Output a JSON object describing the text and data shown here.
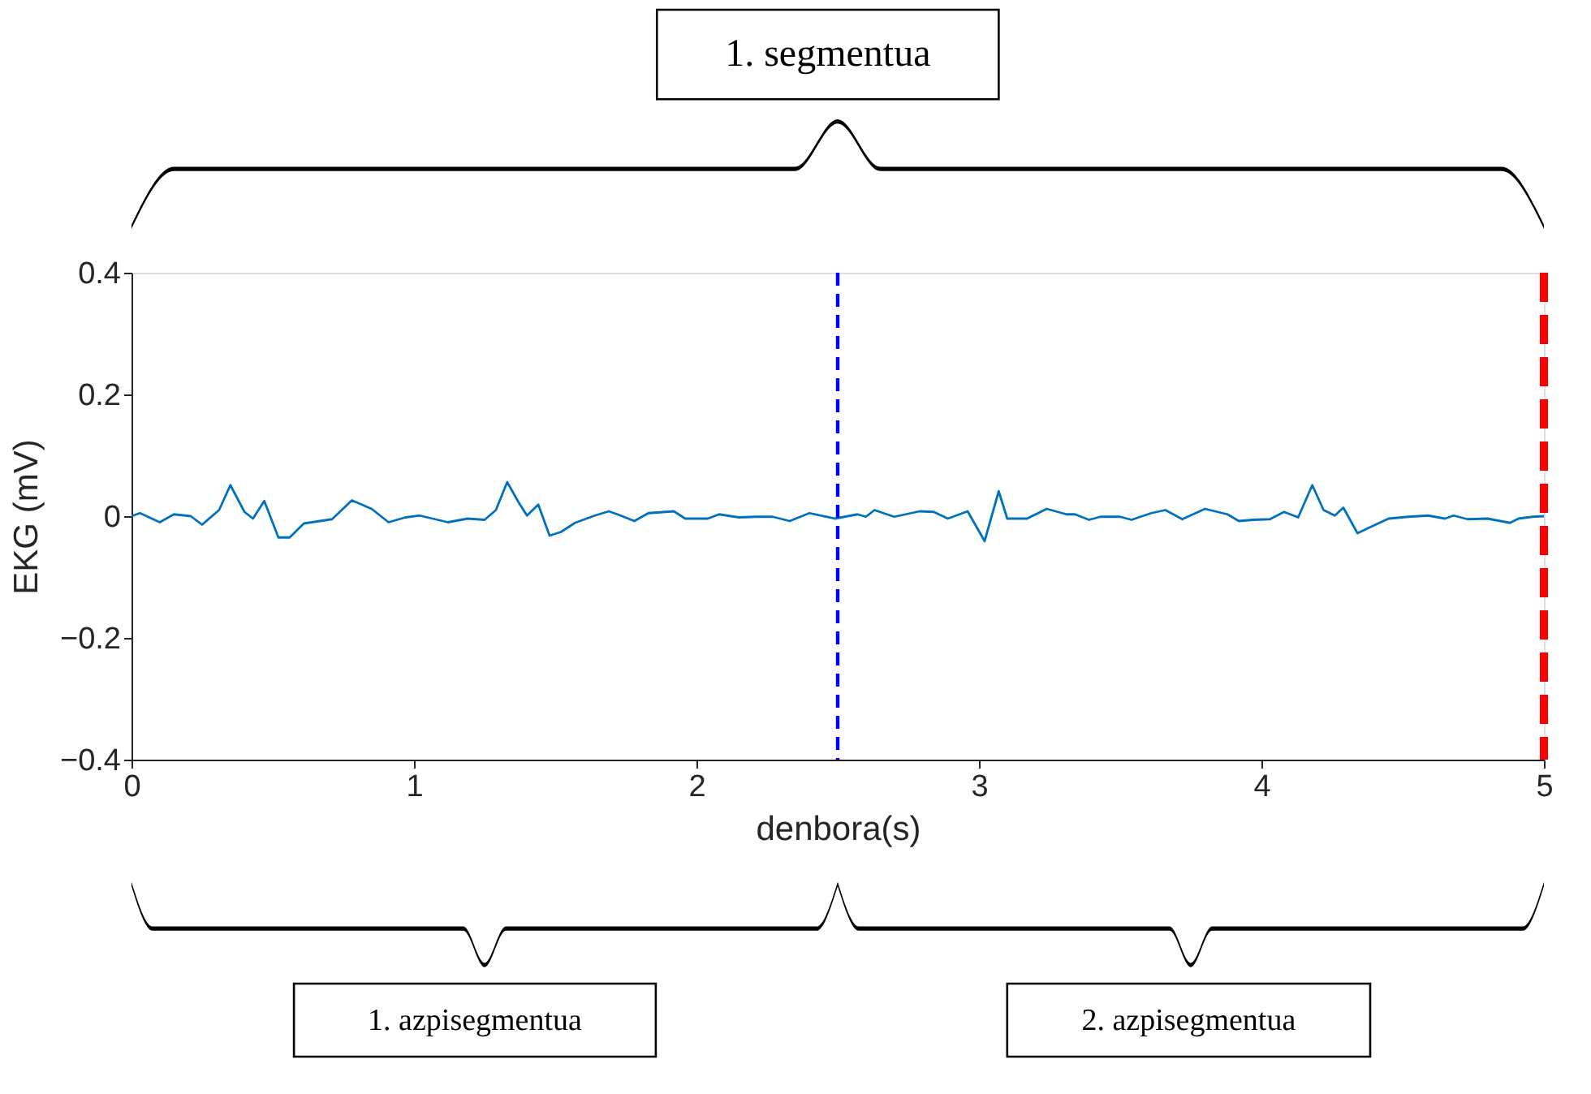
{
  "chart_data": {
    "type": "line",
    "xlabel": "denbora(s)",
    "ylabel": "EKG (mV)",
    "xlim": [
      0,
      5
    ],
    "ylim": [
      -0.4,
      0.4
    ],
    "xticks": [
      0,
      1,
      2,
      3,
      4,
      5
    ],
    "yticks": [
      -0.4,
      -0.2,
      0,
      0.2,
      0.4
    ],
    "grid": false,
    "series": [
      {
        "color": "#0072bd",
        "x": [
          0,
          0.03,
          0.1,
          0.15,
          0.21,
          0.25,
          0.31,
          0.35,
          0.4,
          0.43,
          0.47,
          0.52,
          0.56,
          0.61,
          0.71,
          0.78,
          0.85,
          0.91,
          0.97,
          1.02,
          1.12,
          1.19,
          1.25,
          1.29,
          1.33,
          1.37,
          1.4,
          1.44,
          1.48,
          1.52,
          1.57,
          1.64,
          1.69,
          1.72,
          1.78,
          1.83,
          1.92,
          1.96,
          2.04,
          2.08,
          2.15,
          2.21,
          2.27,
          2.33,
          2.4,
          2.49,
          2.57,
          2.6,
          2.63,
          2.7,
          2.79,
          2.84,
          2.89,
          2.96,
          3.02,
          3.07,
          3.1,
          3.17,
          3.24,
          3.31,
          3.34,
          3.39,
          3.43,
          3.5,
          3.54,
          3.61,
          3.66,
          3.72,
          3.8,
          3.88,
          3.92,
          3.97,
          4.03,
          4.08,
          4.13,
          4.18,
          4.22,
          4.26,
          4.29,
          4.34,
          4.39,
          4.45,
          4.52,
          4.59,
          4.65,
          4.68,
          4.73,
          4.8,
          4.88,
          4.91,
          4.96,
          5.0
        ],
        "values": [
          0,
          0.005,
          -0.01,
          0.003,
          0,
          -0.014,
          0.01,
          0.051,
          0.007,
          -0.004,
          0.025,
          -0.035,
          -0.035,
          -0.012,
          -0.005,
          0.026,
          0.012,
          -0.01,
          -0.002,
          0.001,
          -0.01,
          -0.004,
          -0.006,
          0.01,
          0.056,
          0.023,
          0.001,
          0.019,
          -0.032,
          -0.026,
          -0.011,
          0.001,
          0.008,
          0.003,
          -0.008,
          0.005,
          0.008,
          -0.004,
          -0.004,
          0.003,
          -0.002,
          -0.001,
          -0.001,
          -0.008,
          0.005,
          -0.004,
          0.003,
          -0.001,
          0.01,
          -0.001,
          0.008,
          0.007,
          -0.004,
          0.008,
          -0.041,
          0.041,
          -0.004,
          -0.004,
          0.012,
          0.003,
          0.003,
          -0.006,
          -0.001,
          -0.001,
          -0.006,
          0.005,
          0.01,
          -0.005,
          0.012,
          0.003,
          -0.008,
          -0.006,
          -0.005,
          0.007,
          -0.002,
          0.051,
          0.01,
          0.001,
          0.014,
          -0.028,
          -0.017,
          -0.004,
          -0.001,
          0.001,
          -0.004,
          0.001,
          -0.005,
          -0.004,
          -0.011,
          -0.004,
          -0.001,
          0.0
        ]
      }
    ],
    "ref_lines": [
      {
        "axis": "x",
        "value": 2.5,
        "color": "#0000ff",
        "line_style": "dashed"
      },
      {
        "axis": "x",
        "value": 5,
        "color": "#ff0000",
        "line_style": "dashed"
      }
    ],
    "annotations": [
      "1. segmentua",
      "1. azpisegmentua",
      "2. azpisegmentua"
    ]
  }
}
